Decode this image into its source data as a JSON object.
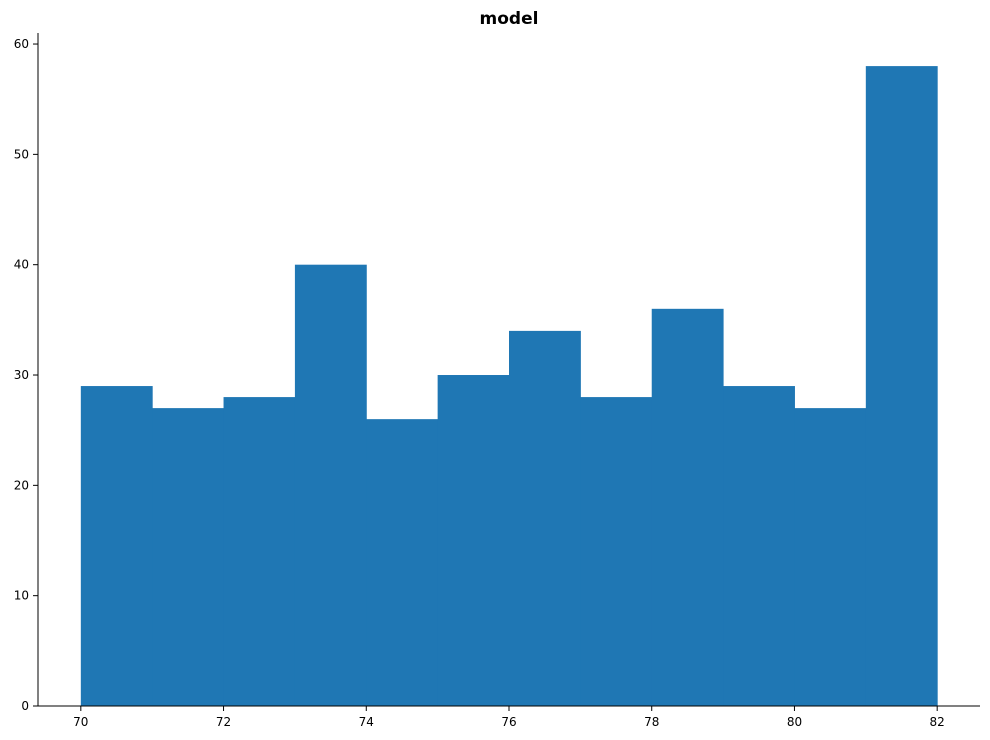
{
  "chart_data": {
    "type": "bar",
    "title": "model",
    "xlabel": "",
    "ylabel": "",
    "bin_edges": [
      70,
      71,
      72,
      73,
      74,
      75,
      76,
      77,
      78,
      79,
      80,
      81,
      82
    ],
    "values": [
      29,
      27,
      28,
      40,
      26,
      30,
      34,
      28,
      36,
      29,
      27,
      58
    ],
    "xlim": [
      69.4,
      82.6
    ],
    "ylim": [
      0,
      61
    ],
    "xticks": [
      70,
      72,
      74,
      76,
      78,
      80,
      82
    ],
    "yticks": [
      0,
      10,
      20,
      30,
      40,
      50,
      60
    ],
    "grid": false,
    "bar_color": "#1f77b4"
  }
}
